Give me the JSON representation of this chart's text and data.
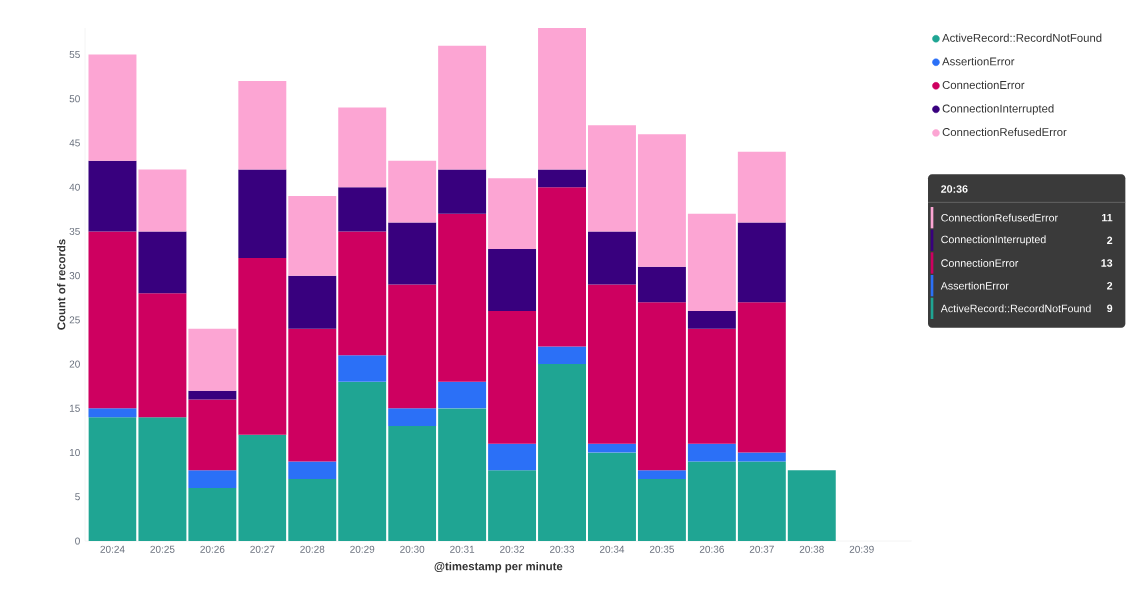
{
  "chart_data": {
    "type": "bar",
    "stacked": true,
    "xlabel": "@timestamp per minute",
    "ylabel": "Count of records",
    "categories": [
      "20:24",
      "20:25",
      "20:26",
      "20:27",
      "20:28",
      "20:29",
      "20:30",
      "20:31",
      "20:32",
      "20:33",
      "20:34",
      "20:35",
      "20:36",
      "20:37",
      "20:38",
      "20:39"
    ],
    "series": [
      {
        "name": "ActiveRecord::RecordNotFound",
        "color": "#1fa593",
        "values": [
          14,
          14,
          6,
          12,
          7,
          18,
          13,
          15,
          8,
          20,
          10,
          7,
          9,
          9,
          8,
          null
        ]
      },
      {
        "name": "AssertionError",
        "color": "#2b70f7",
        "values": [
          1,
          0,
          2,
          0,
          2,
          3,
          2,
          3,
          3,
          2,
          1,
          1,
          2,
          1,
          null,
          null
        ]
      },
      {
        "name": "ConnectionError",
        "color": "#ce0060",
        "values": [
          20,
          14,
          8,
          20,
          15,
          14,
          14,
          19,
          15,
          18,
          18,
          19,
          13,
          17,
          null,
          null
        ]
      },
      {
        "name": "ConnectionInterrupted",
        "color": "#38007e",
        "values": [
          8,
          7,
          1,
          10,
          6,
          5,
          7,
          5,
          7,
          2,
          6,
          4,
          2,
          9,
          null,
          null
        ]
      },
      {
        "name": "ConnectionRefusedError",
        "color": "#fca5d3",
        "values": [
          12,
          7,
          7,
          10,
          9,
          9,
          7,
          14,
          8,
          16,
          12,
          15,
          11,
          8,
          null,
          null
        ]
      }
    ],
    "ylim": [
      0,
      58
    ],
    "yticks": [
      0,
      5,
      10,
      15,
      20,
      25,
      30,
      35,
      40,
      45,
      50,
      55
    ],
    "grid": false,
    "legend": "top right",
    "annotations": [
      "20:36",
      "ConnectionRefusedError",
      "11",
      "ConnectionInterrupted",
      "2",
      "ConnectionError",
      "13",
      "AssertionError",
      "2",
      "ActiveRecord::RecordNotFound",
      "9"
    ]
  }
}
